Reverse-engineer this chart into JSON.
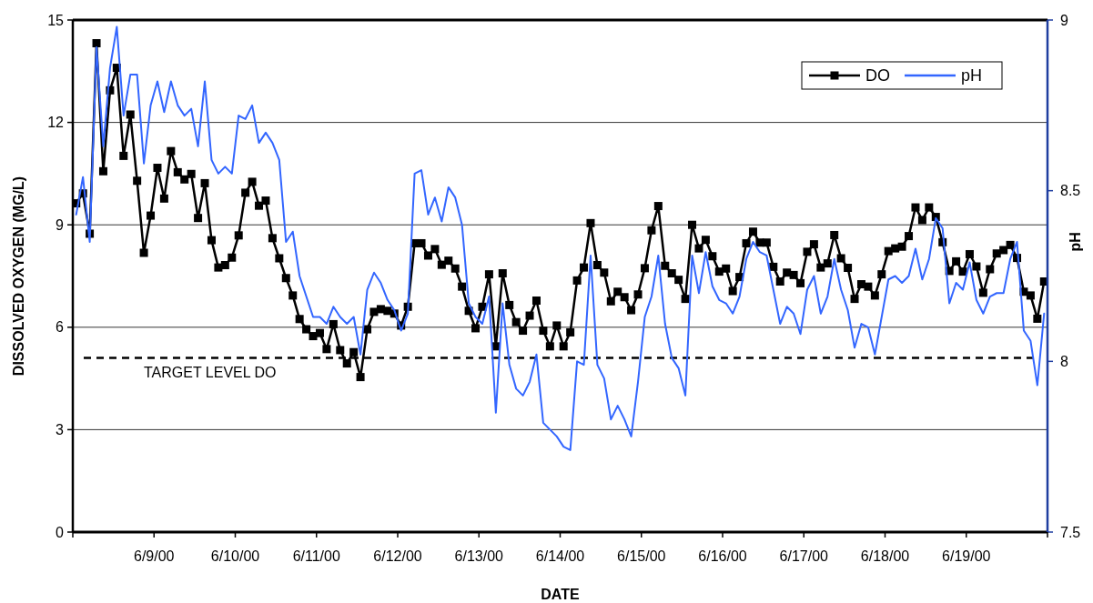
{
  "chart_data": {
    "type": "line",
    "xlabel": "DATE",
    "ylabel": "DISSOLVED OXYGEN (MG/L)",
    "y2label": "pH",
    "x": [
      "2000-06-08T01:00",
      "2000-06-08T03:00",
      "2000-06-08T05:00",
      "2000-06-08T07:00",
      "2000-06-08T09:00",
      "2000-06-08T11:00",
      "2000-06-08T13:00",
      "2000-06-08T15:00",
      "2000-06-08T17:00",
      "2000-06-08T19:00",
      "2000-06-08T21:00",
      "2000-06-08T23:00",
      "2000-06-09T01:00",
      "2000-06-09T03:00",
      "2000-06-09T05:00",
      "2000-06-09T07:00",
      "2000-06-09T09:00",
      "2000-06-09T11:00",
      "2000-06-09T13:00",
      "2000-06-09T15:00",
      "2000-06-09T17:00",
      "2000-06-09T19:00",
      "2000-06-09T21:00",
      "2000-06-09T23:00",
      "2000-06-10T01:00",
      "2000-06-10T03:00",
      "2000-06-10T05:00",
      "2000-06-10T07:00",
      "2000-06-10T09:00",
      "2000-06-10T11:00",
      "2000-06-10T13:00",
      "2000-06-10T15:00",
      "2000-06-10T17:00",
      "2000-06-10T19:00",
      "2000-06-10T21:00",
      "2000-06-10T23:00",
      "2000-06-11T01:00",
      "2000-06-11T03:00",
      "2000-06-11T05:00",
      "2000-06-11T07:00",
      "2000-06-11T09:00",
      "2000-06-11T11:00",
      "2000-06-11T13:00",
      "2000-06-11T15:00",
      "2000-06-11T17:00",
      "2000-06-11T19:00",
      "2000-06-11T21:00",
      "2000-06-11T23:00",
      "2000-06-12T01:00",
      "2000-06-12T03:00",
      "2000-06-12T05:00",
      "2000-06-12T07:00",
      "2000-06-12T09:00",
      "2000-06-12T11:00",
      "2000-06-12T13:00",
      "2000-06-12T15:00",
      "2000-06-12T17:00",
      "2000-06-12T19:00",
      "2000-06-12T21:00",
      "2000-06-12T23:00",
      "2000-06-13T01:00",
      "2000-06-13T03:00",
      "2000-06-13T05:00",
      "2000-06-13T07:00",
      "2000-06-13T09:00",
      "2000-06-13T11:00",
      "2000-06-13T13:00",
      "2000-06-13T15:00",
      "2000-06-13T17:00",
      "2000-06-13T19:00",
      "2000-06-13T21:00",
      "2000-06-13T23:00",
      "2000-06-14T01:00",
      "2000-06-14T03:00",
      "2000-06-14T05:00",
      "2000-06-14T07:00",
      "2000-06-14T09:00",
      "2000-06-14T11:00",
      "2000-06-14T13:00",
      "2000-06-14T15:00",
      "2000-06-14T17:00",
      "2000-06-14T19:00",
      "2000-06-14T21:00",
      "2000-06-14T23:00",
      "2000-06-15T01:00",
      "2000-06-15T03:00",
      "2000-06-15T05:00",
      "2000-06-15T07:00",
      "2000-06-15T09:00",
      "2000-06-15T11:00",
      "2000-06-15T13:00",
      "2000-06-15T15:00",
      "2000-06-15T17:00",
      "2000-06-15T19:00",
      "2000-06-15T21:00",
      "2000-06-15T23:00",
      "2000-06-16T01:00",
      "2000-06-16T03:00",
      "2000-06-16T05:00",
      "2000-06-16T07:00",
      "2000-06-16T09:00",
      "2000-06-16T11:00",
      "2000-06-16T13:00",
      "2000-06-16T15:00",
      "2000-06-16T17:00",
      "2000-06-16T19:00",
      "2000-06-16T21:00",
      "2000-06-16T23:00",
      "2000-06-17T01:00",
      "2000-06-17T03:00",
      "2000-06-17T05:00",
      "2000-06-17T07:00",
      "2000-06-17T09:00",
      "2000-06-17T11:00",
      "2000-06-17T13:00",
      "2000-06-17T15:00",
      "2000-06-17T17:00",
      "2000-06-17T19:00",
      "2000-06-17T21:00",
      "2000-06-17T23:00",
      "2000-06-18T01:00",
      "2000-06-18T03:00",
      "2000-06-18T05:00",
      "2000-06-18T07:00",
      "2000-06-18T09:00",
      "2000-06-18T11:00",
      "2000-06-18T13:00",
      "2000-06-18T15:00",
      "2000-06-18T17:00",
      "2000-06-18T19:00",
      "2000-06-18T21:00",
      "2000-06-18T23:00",
      "2000-06-19T01:00",
      "2000-06-19T03:00",
      "2000-06-19T05:00",
      "2000-06-19T07:00",
      "2000-06-19T09:00",
      "2000-06-19T11:00",
      "2000-06-19T13:00",
      "2000-06-19T15:00",
      "2000-06-19T17:00",
      "2000-06-19T19:00",
      "2000-06-19T21:00",
      "2000-06-19T23:00"
    ],
    "series": [
      {
        "name": "DO",
        "color": "#000000",
        "marker": "square",
        "values": [
          9.63,
          9.92,
          8.74,
          14.32,
          10.57,
          12.94,
          13.6,
          11.02,
          12.23,
          10.29,
          8.18,
          9.27,
          10.67,
          9.77,
          11.16,
          10.54,
          10.33,
          10.49,
          9.2,
          10.22,
          8.55,
          7.75,
          7.82,
          8.04,
          8.69,
          9.94,
          10.26,
          9.56,
          9.71,
          8.61,
          8.02,
          7.44,
          6.93,
          6.24,
          5.94,
          5.74,
          5.83,
          5.36,
          6.09,
          5.33,
          4.94,
          5.27,
          4.54,
          5.94,
          6.45,
          6.53,
          6.48,
          6.4,
          6.05,
          6.6,
          8.46,
          8.46,
          8.1,
          8.29,
          7.83,
          7.95,
          7.72,
          7.19,
          6.48,
          5.97,
          6.6,
          7.55,
          5.44,
          7.58,
          6.65,
          6.15,
          5.9,
          6.34,
          6.78,
          5.9,
          5.44,
          6.05,
          5.44,
          5.85,
          7.37,
          7.75,
          9.05,
          7.82,
          7.6,
          6.76,
          7.04,
          6.88,
          6.5,
          6.96,
          7.73,
          8.84,
          9.55,
          7.8,
          7.58,
          7.39,
          6.83,
          9.0,
          8.31,
          8.56,
          8.08,
          7.63,
          7.72,
          7.06,
          7.47,
          8.46,
          8.8,
          8.48,
          8.48,
          7.77,
          7.34,
          7.6,
          7.53,
          7.29,
          8.21,
          8.43,
          7.75,
          7.87,
          8.7,
          8.02,
          7.74,
          6.83,
          7.26,
          7.19,
          6.93,
          7.55,
          8.23,
          8.31,
          8.36,
          8.67,
          9.51,
          9.14,
          9.51,
          9.23,
          8.49,
          7.65,
          7.93,
          7.63,
          8.14,
          7.78,
          7.01,
          7.7,
          8.16,
          8.26,
          8.41,
          8.03,
          7.04,
          6.93,
          6.25,
          7.34
        ]
      },
      {
        "name": "pH",
        "color": "#3366ff",
        "axis": "y2",
        "marker": "none",
        "values": [
          8.43,
          8.54,
          8.35,
          8.92,
          8.63,
          8.86,
          8.98,
          8.72,
          8.84,
          8.84,
          8.58,
          8.75,
          8.82,
          8.73,
          8.82,
          8.75,
          8.72,
          8.74,
          8.63,
          8.82,
          8.59,
          8.55,
          8.57,
          8.55,
          8.72,
          8.71,
          8.75,
          8.64,
          8.67,
          8.64,
          8.59,
          8.35,
          8.38,
          8.25,
          8.19,
          8.13,
          8.13,
          8.11,
          8.16,
          8.13,
          8.11,
          8.13,
          8.02,
          8.21,
          8.26,
          8.23,
          8.18,
          8.15,
          8.09,
          8.14,
          8.55,
          8.56,
          8.43,
          8.48,
          8.41,
          8.51,
          8.48,
          8.4,
          8.17,
          8.13,
          8.11,
          8.19,
          7.85,
          8.17,
          7.99,
          7.92,
          7.9,
          7.94,
          8.02,
          7.82,
          7.8,
          7.78,
          7.75,
          7.74,
          8.0,
          7.99,
          8.31,
          7.99,
          7.95,
          7.83,
          7.87,
          7.83,
          7.78,
          7.94,
          8.13,
          8.19,
          8.31,
          8.11,
          8.01,
          7.98,
          7.9,
          8.31,
          8.2,
          8.32,
          8.22,
          8.18,
          8.17,
          8.14,
          8.19,
          8.3,
          8.35,
          8.32,
          8.31,
          8.21,
          8.11,
          8.16,
          8.14,
          8.08,
          8.21,
          8.25,
          8.14,
          8.19,
          8.3,
          8.21,
          8.15,
          8.04,
          8.11,
          8.1,
          8.02,
          8.13,
          8.24,
          8.25,
          8.23,
          8.25,
          8.33,
          8.24,
          8.3,
          8.42,
          8.39,
          8.17,
          8.23,
          8.21,
          8.29,
          8.18,
          8.14,
          8.19,
          8.2,
          8.2,
          8.3,
          8.35,
          8.09,
          8.06,
          7.93,
          8.14
        ]
      }
    ],
    "xlim": [
      "2000-06-08",
      "2000-06-20"
    ],
    "xticks": [
      {
        "value": "2000-06-08",
        "label": null
      },
      {
        "value": "2000-06-09",
        "label": "6/9/00"
      },
      {
        "value": "2000-06-10",
        "label": "6/10/00"
      },
      {
        "value": "2000-06-11",
        "label": "6/11/00"
      },
      {
        "value": "2000-06-12",
        "label": "6/12/00"
      },
      {
        "value": "2000-06-13",
        "label": "6/13/00"
      },
      {
        "value": "2000-06-14",
        "label": "6/14/00"
      },
      {
        "value": "2000-06-15",
        "label": "6/15/00"
      },
      {
        "value": "2000-06-16",
        "label": "6/16/00"
      },
      {
        "value": "2000-06-17",
        "label": "6/17/00"
      },
      {
        "value": "2000-06-18",
        "label": "6/18/00"
      },
      {
        "value": "2000-06-19",
        "label": "6/19/00"
      },
      {
        "value": "2000-06-20",
        "label": null
      }
    ],
    "ylim": [
      0,
      15
    ],
    "yticks": [
      0,
      3,
      6,
      9,
      12,
      15
    ],
    "y2lim": [
      7.5,
      9
    ],
    "y2ticks": [
      7.5,
      8,
      8.5,
      9
    ],
    "ref_lines": [
      {
        "axis": "y",
        "value": 5.1,
        "label": "TARGET LEVEL DO",
        "color": "#000000",
        "line_style": "dashed"
      }
    ],
    "grid": "y",
    "legend": "top right",
    "line_style": "solid"
  }
}
